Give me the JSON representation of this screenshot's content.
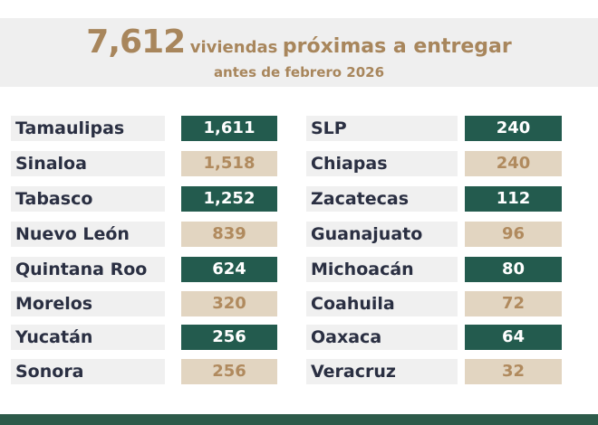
{
  "header": {
    "total": "7,612",
    "text_a": "viviendas",
    "text_b": "próximas a entregar",
    "subtitle": "antes de febrero 2026"
  },
  "colors": {
    "green": "#235b4e",
    "beige": "#e2d5c1",
    "gold": "#a8865c"
  },
  "left": [
    {
      "state": "Tamaulipas",
      "value": "1,611",
      "style": "green"
    },
    {
      "state": "Sinaloa",
      "value": "1,518",
      "style": "beige"
    },
    {
      "state": "Tabasco",
      "value": "1,252",
      "style": "green"
    },
    {
      "state": "Nuevo León",
      "value": "839",
      "style": "beige"
    },
    {
      "state": "Quintana Roo",
      "value": "624",
      "style": "green"
    },
    {
      "state": "Morelos",
      "value": "320",
      "style": "beige"
    },
    {
      "state": "Yucatán",
      "value": "256",
      "style": "green"
    },
    {
      "state": "Sonora",
      "value": "256",
      "style": "beige"
    }
  ],
  "right": [
    {
      "state": "SLP",
      "value": "240",
      "style": "green"
    },
    {
      "state": "Chiapas",
      "value": "240",
      "style": "beige"
    },
    {
      "state": "Zacatecas",
      "value": "112",
      "style": "green"
    },
    {
      "state": "Guanajuato",
      "value": "96",
      "style": "beige"
    },
    {
      "state": "Michoacán",
      "value": "80",
      "style": "green"
    },
    {
      "state": "Coahuila",
      "value": "72",
      "style": "beige"
    },
    {
      "state": "Oaxaca",
      "value": "64",
      "style": "green"
    },
    {
      "state": "Veracruz",
      "value": "32",
      "style": "beige"
    }
  ]
}
